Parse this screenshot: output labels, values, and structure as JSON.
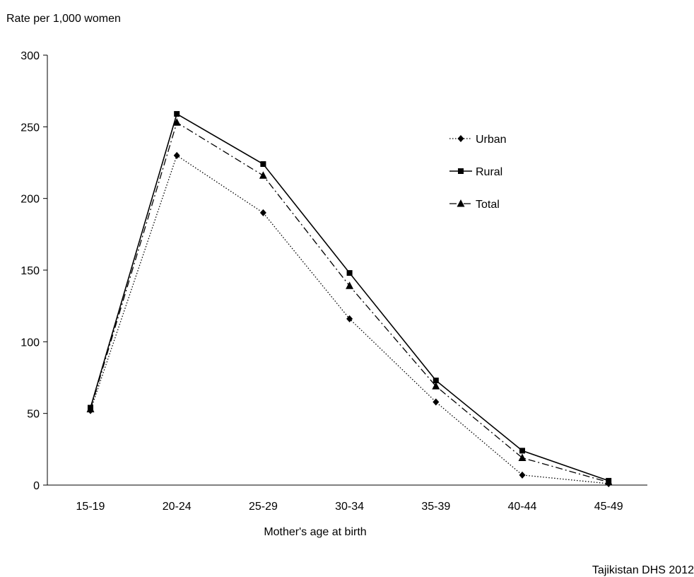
{
  "chart_data": {
    "type": "line",
    "title": "",
    "ylabel": "Rate per 1,000 women",
    "xlabel": "Mother's age at birth",
    "categories": [
      "15-19",
      "20-24",
      "25-29",
      "30-34",
      "35-39",
      "40-44",
      "45-49"
    ],
    "ylim": [
      0,
      300
    ],
    "yticks": [
      0,
      50,
      100,
      150,
      200,
      250,
      300
    ],
    "grid": false,
    "legend": "right",
    "series": [
      {
        "name": "Urban",
        "values": [
          52,
          230,
          190,
          116,
          58,
          7,
          1
        ],
        "marker": "diamond",
        "dash": "dotted"
      },
      {
        "name": "Rural",
        "values": [
          54,
          259,
          224,
          148,
          73,
          24,
          3
        ],
        "marker": "square",
        "dash": "solid"
      },
      {
        "name": "Total",
        "values": [
          53,
          253,
          216,
          139,
          69,
          19,
          2
        ],
        "marker": "triangle",
        "dash": "dashdot"
      }
    ]
  },
  "source_note": "Tajikistan DHS 2012",
  "colors": {
    "line": "#000000",
    "axis": "#000000",
    "background": "#ffffff"
  }
}
